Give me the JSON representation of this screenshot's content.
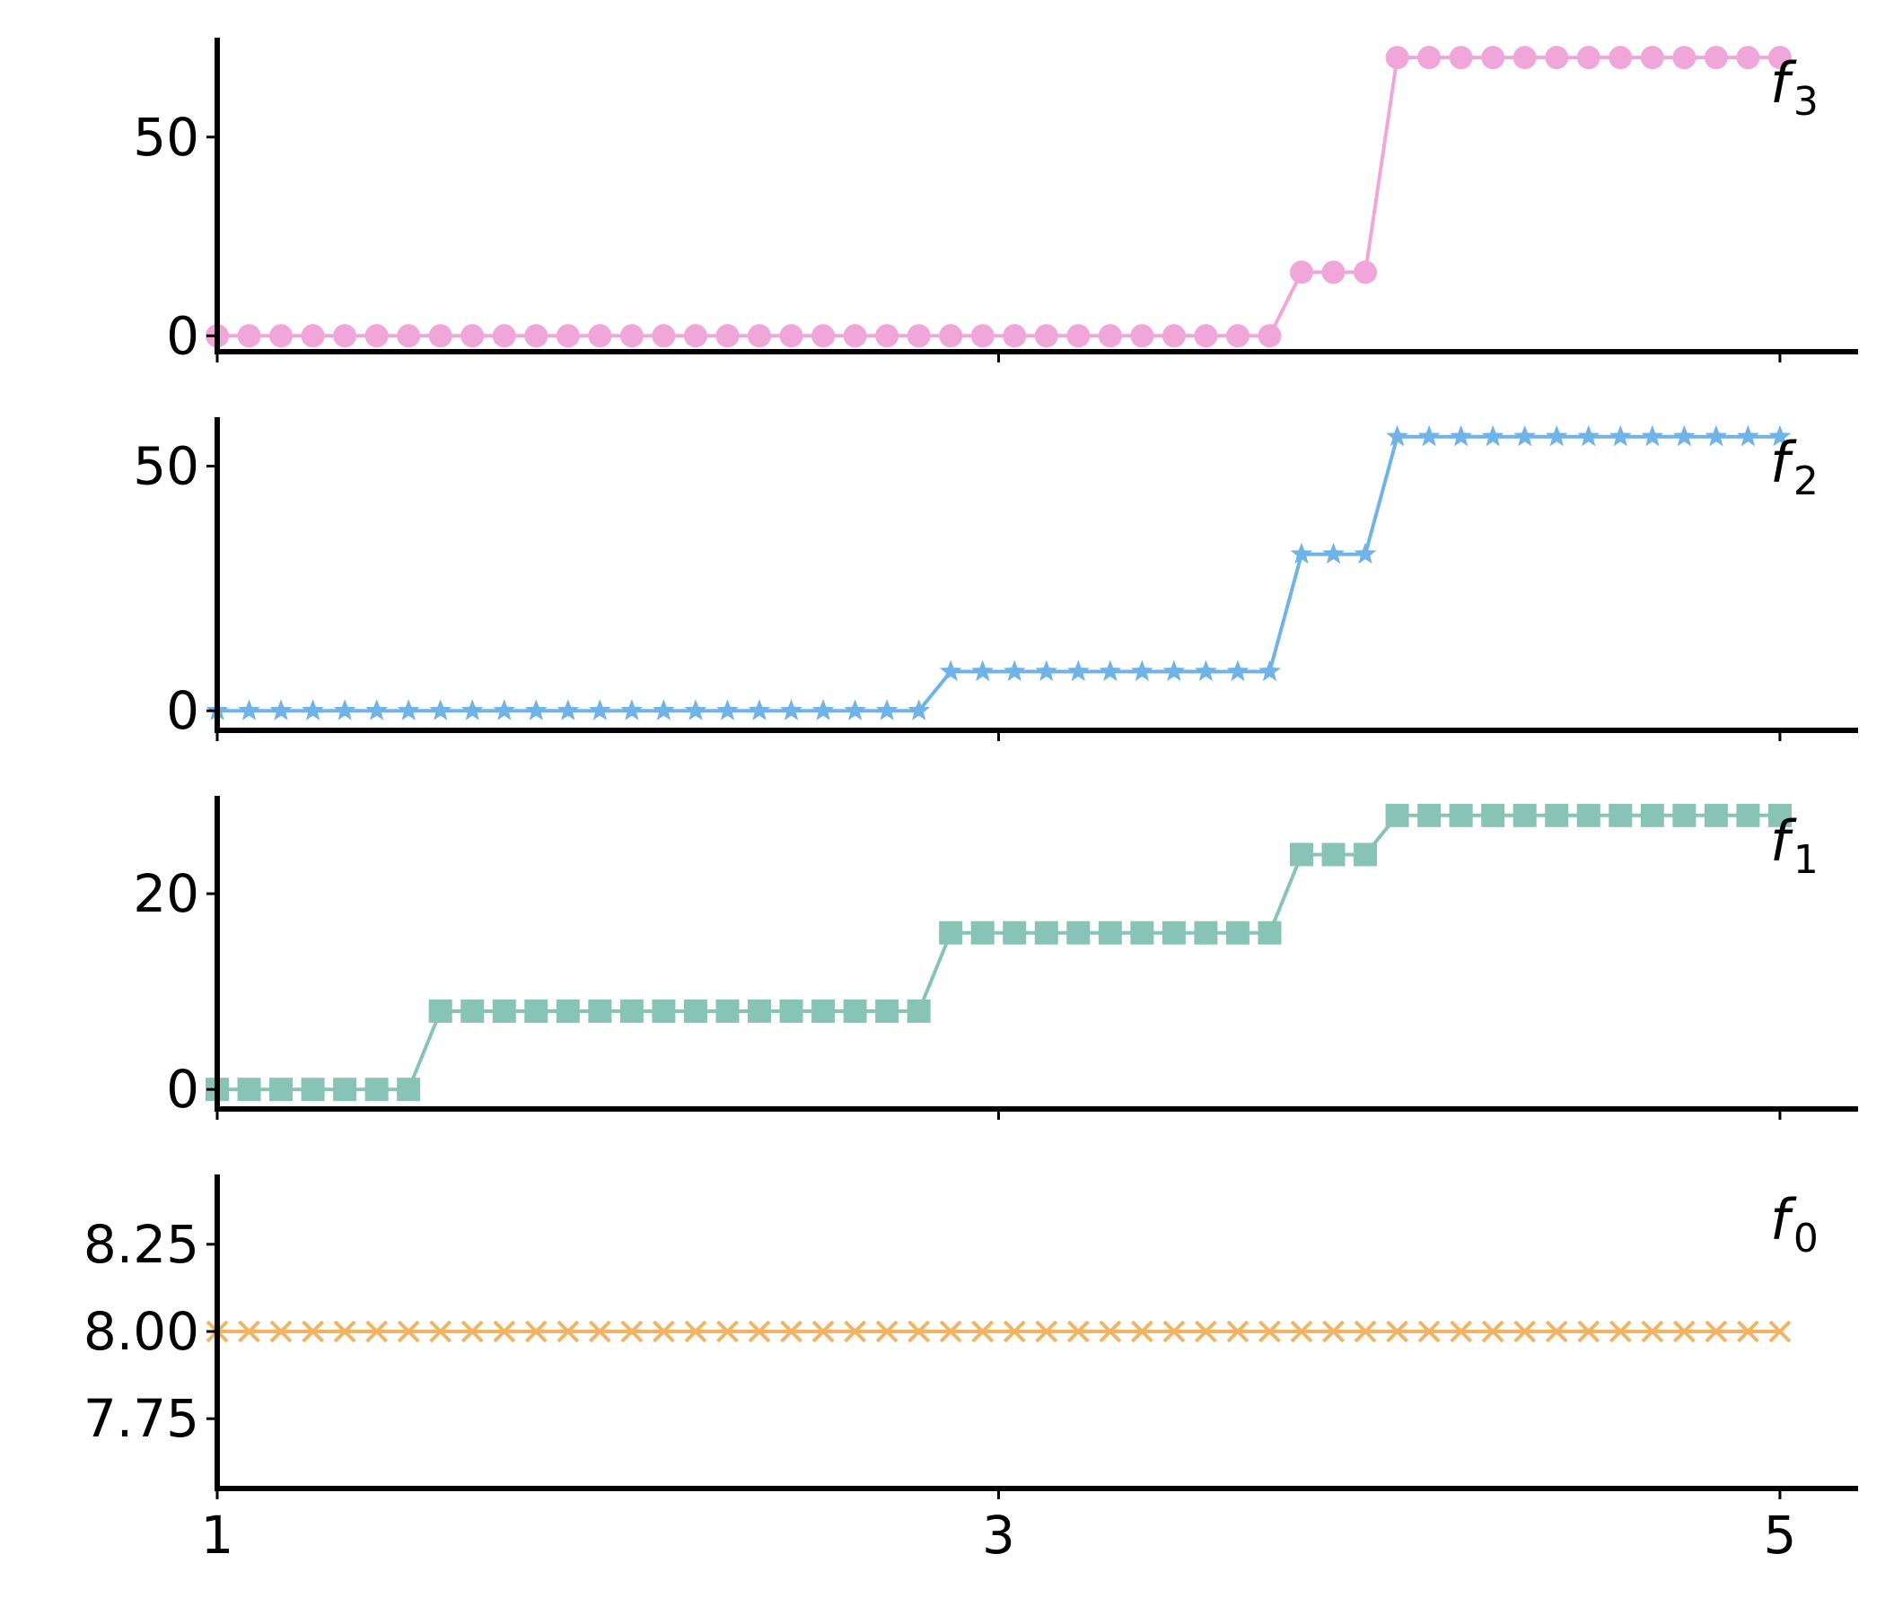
{
  "chart_data": [
    {
      "type": "line",
      "panel": "f3",
      "label_base": "f",
      "label_sub": "3",
      "color": "#f0a6d8",
      "marker": "circle",
      "ylim": [
        -4,
        75
      ],
      "yticks": [
        0,
        50
      ],
      "ytick_labels": [
        "0",
        "50"
      ],
      "xlim": [
        1,
        5.2
      ],
      "xticks": [
        1,
        3,
        5
      ],
      "xtick_labels": [],
      "x_start": 1,
      "x_end": 5,
      "n_points": 50,
      "steps": [
        {
          "from_index": 0,
          "value": 0
        },
        {
          "from_index": 34,
          "value": 16
        },
        {
          "from_index": 37,
          "value": 70
        }
      ]
    },
    {
      "type": "line",
      "panel": "f2",
      "label_base": "f",
      "label_sub": "2",
      "color": "#6fb3e8",
      "marker": "star",
      "ylim": [
        -4,
        60
      ],
      "yticks": [
        0,
        50
      ],
      "ytick_labels": [
        "0",
        "50"
      ],
      "xlim": [
        1,
        5.2
      ],
      "xticks": [
        1,
        3,
        5
      ],
      "xtick_labels": [],
      "x_start": 1,
      "x_end": 5,
      "n_points": 50,
      "steps": [
        {
          "from_index": 0,
          "value": 0
        },
        {
          "from_index": 23,
          "value": 8
        },
        {
          "from_index": 34,
          "value": 32
        },
        {
          "from_index": 37,
          "value": 56
        }
      ]
    },
    {
      "type": "line",
      "panel": "f1",
      "label_base": "f",
      "label_sub": "1",
      "color": "#88c4b6",
      "marker": "square",
      "ylim": [
        -2,
        30
      ],
      "yticks": [
        0,
        20
      ],
      "ytick_labels": [
        "0",
        "20"
      ],
      "xlim": [
        1,
        5.2
      ],
      "xticks": [
        1,
        3,
        5
      ],
      "xtick_labels": [],
      "x_start": 1,
      "x_end": 5,
      "n_points": 50,
      "steps": [
        {
          "from_index": 0,
          "value": 0
        },
        {
          "from_index": 7,
          "value": 8
        },
        {
          "from_index": 23,
          "value": 16
        },
        {
          "from_index": 34,
          "value": 24
        },
        {
          "from_index": 37,
          "value": 28
        }
      ]
    },
    {
      "type": "line",
      "panel": "f0",
      "label_base": "f",
      "label_sub": "0",
      "color": "#f2b463",
      "marker": "x",
      "ylim": [
        7.55,
        8.45
      ],
      "yticks": [
        7.75,
        8.0,
        8.25
      ],
      "ytick_labels": [
        "7.75",
        "8.00",
        "8.25"
      ],
      "xlim": [
        1,
        5.2
      ],
      "xticks": [
        1,
        3,
        5
      ],
      "xtick_labels": [
        "1",
        "3",
        "5"
      ],
      "x_start": 1,
      "x_end": 5,
      "n_points": 50,
      "steps": [
        {
          "from_index": 0,
          "value": 8
        }
      ]
    }
  ]
}
